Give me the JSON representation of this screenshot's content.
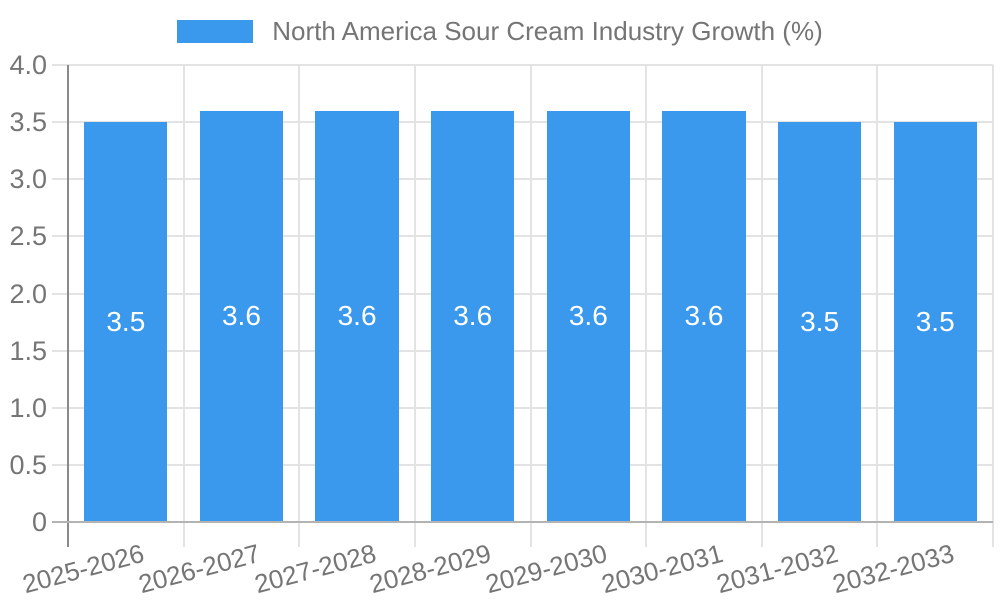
{
  "chart_data": {
    "type": "bar",
    "title": "",
    "legend_position": "top",
    "categories": [
      "2025-2026",
      "2026-2027",
      "2027-2028",
      "2028-2029",
      "2029-2030",
      "2030-2031",
      "2031-2032",
      "2032-2033"
    ],
    "series": [
      {
        "name": "North America Sour Cream Industry Growth (%)",
        "values": [
          3.5,
          3.6,
          3.6,
          3.6,
          3.6,
          3.6,
          3.5,
          3.5
        ],
        "value_labels": [
          "3.5",
          "3.6",
          "3.6",
          "3.6",
          "3.6",
          "3.6",
          "3.5",
          "3.5"
        ]
      }
    ],
    "xlabel": "",
    "ylabel": "",
    "ylim": [
      0,
      4
    ],
    "y_ticks": [
      "4.0",
      "3.5",
      "3.0",
      "2.5",
      "2.0",
      "1.5",
      "1.0",
      "0.5",
      "0"
    ],
    "grid": "horizontal and vertical",
    "colors": {
      "bar": "#3a99ec",
      "axis_text": "#757575",
      "value_text": "#ffffff",
      "grid": "#e3e3e3",
      "y_axis_line": "#8a8a8a",
      "x_axis_line": "#b3b3b3",
      "background": "#ffffff"
    }
  }
}
